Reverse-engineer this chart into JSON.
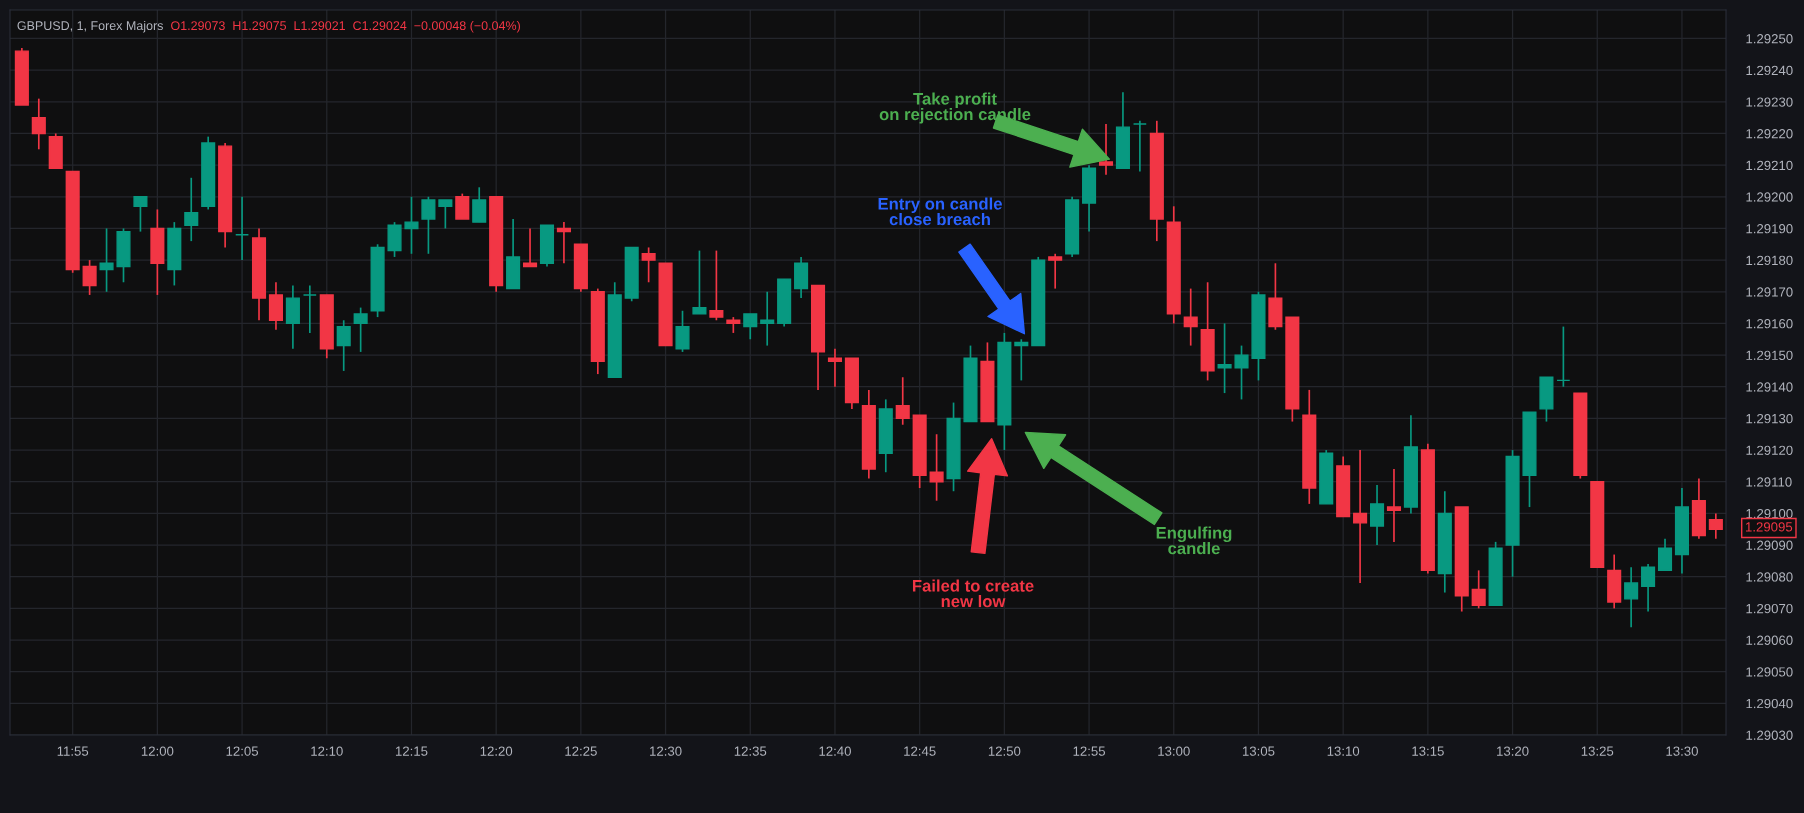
{
  "chart_data": {
    "type": "candlestick",
    "title": "GBPUSD, 1, Forex Majors",
    "subtitle": "O1.29073  H1.29075  L1.29021  C1.29024  −0.00048 (−0.04%)",
    "categories": [
      null,
      null,
      null,
      "11:55",
      null,
      null,
      null,
      null,
      "12:00",
      null,
      null,
      null,
      null,
      "12:05",
      null,
      null,
      null,
      null,
      "12:10",
      null,
      null,
      null,
      null,
      "12:15",
      null,
      null,
      null,
      null,
      "12:20",
      null,
      null,
      null,
      null,
      "12:25",
      null,
      null,
      null,
      null,
      "12:30",
      null,
      null,
      null,
      null,
      "12:35",
      null,
      null,
      null,
      null,
      "12:40",
      null,
      null,
      null,
      null,
      "12:45",
      null,
      null,
      null,
      null,
      "12:50",
      null,
      null,
      null,
      null,
      "12:55",
      null,
      null,
      null,
      null,
      "13:00",
      null,
      null,
      null,
      null,
      "13:05",
      null,
      null,
      null,
      null,
      "13:10",
      null,
      null,
      null,
      null,
      "13:15",
      null,
      null,
      null,
      null,
      "13:20",
      null,
      null,
      null,
      null,
      "13:25",
      null,
      null,
      null,
      null,
      "13:30",
      null,
      null
    ],
    "ohlc": [
      [
        1.29246,
        1.29247,
        1.29229,
        1.29229
      ],
      [
        1.29225,
        1.29231,
        1.29215,
        1.2922
      ],
      [
        1.29219,
        1.2922,
        1.29209,
        1.29209
      ],
      [
        1.29208,
        1.29208,
        1.29176,
        1.29177
      ],
      [
        1.29178,
        1.2918,
        1.29169,
        1.29172
      ],
      [
        1.29177,
        1.2919,
        1.2917,
        1.29179
      ],
      [
        1.29178,
        1.2919,
        1.29173,
        1.29189
      ],
      [
        1.29197,
        1.292,
        1.29189,
        1.292
      ],
      [
        1.2919,
        1.29196,
        1.29169,
        1.29179
      ],
      [
        1.29177,
        1.29192,
        1.29172,
        1.2919
      ],
      [
        1.29191,
        1.29206,
        1.29186,
        1.29195
      ],
      [
        1.29197,
        1.29219,
        1.29196,
        1.29217
      ],
      [
        1.29216,
        1.29217,
        1.29184,
        1.29189
      ],
      [
        1.29188,
        1.292,
        1.2918,
        1.29188
      ],
      [
        1.29187,
        1.2919,
        1.29161,
        1.29168
      ],
      [
        1.29169,
        1.29173,
        1.29158,
        1.29161
      ],
      [
        1.2916,
        1.29172,
        1.29152,
        1.29168
      ],
      [
        1.29169,
        1.29172,
        1.29157,
        1.29169
      ],
      [
        1.29169,
        1.29169,
        1.29149,
        1.29152
      ],
      [
        1.29153,
        1.29161,
        1.29145,
        1.29159
      ],
      [
        1.2916,
        1.29165,
        1.29151,
        1.29163
      ],
      [
        1.29164,
        1.29185,
        1.29162,
        1.29184
      ],
      [
        1.29183,
        1.29192,
        1.29181,
        1.29191
      ],
      [
        1.2919,
        1.292,
        1.29182,
        1.29192
      ],
      [
        1.29193,
        1.292,
        1.29182,
        1.29199
      ],
      [
        1.29197,
        1.29199,
        1.2919,
        1.29199
      ],
      [
        1.292,
        1.29201,
        1.29193,
        1.29193
      ],
      [
        1.29192,
        1.29203,
        1.29192,
        1.29199
      ],
      [
        1.292,
        1.292,
        1.2917,
        1.29172
      ],
      [
        1.29171,
        1.29193,
        1.29171,
        1.29181
      ],
      [
        1.29179,
        1.2919,
        1.29178,
        1.29178
      ],
      [
        1.29179,
        1.29191,
        1.29178,
        1.29191
      ],
      [
        1.2919,
        1.29192,
        1.29179,
        1.29189
      ],
      [
        1.29185,
        1.29185,
        1.2917,
        1.29171
      ],
      [
        1.2917,
        1.29171,
        1.29144,
        1.29148
      ],
      [
        1.29143,
        1.29173,
        1.29143,
        1.29169
      ],
      [
        1.29168,
        1.29184,
        1.29167,
        1.29184
      ],
      [
        1.29182,
        1.29184,
        1.29173,
        1.2918
      ],
      [
        1.29179,
        1.29179,
        1.29153,
        1.29153
      ],
      [
        1.29152,
        1.29164,
        1.29151,
        1.29159
      ],
      [
        1.29163,
        1.29183,
        1.29163,
        1.29165
      ],
      [
        1.29164,
        1.29183,
        1.29161,
        1.29162
      ],
      [
        1.29161,
        1.29162,
        1.29157,
        1.2916
      ],
      [
        1.29159,
        1.29163,
        1.29155,
        1.29163
      ],
      [
        1.2916,
        1.2917,
        1.29153,
        1.29161
      ],
      [
        1.2916,
        1.29174,
        1.29159,
        1.29174
      ],
      [
        1.29171,
        1.29181,
        1.29168,
        1.29179
      ],
      [
        1.29172,
        1.29172,
        1.29139,
        1.29151
      ],
      [
        1.29149,
        1.29152,
        1.2914,
        1.29148
      ],
      [
        1.29149,
        1.29149,
        1.29133,
        1.29135
      ],
      [
        1.29134,
        1.29139,
        1.29111,
        1.29114
      ],
      [
        1.29119,
        1.29136,
        1.29113,
        1.29133
      ],
      [
        1.29134,
        1.29143,
        1.29128,
        1.2913
      ],
      [
        1.29131,
        1.29131,
        1.29108,
        1.29112
      ],
      [
        1.29113,
        1.29125,
        1.29104,
        1.2911
      ],
      [
        1.29111,
        1.29135,
        1.29107,
        1.2913
      ],
      [
        1.29129,
        1.29153,
        1.29129,
        1.29149
      ],
      [
        1.29148,
        1.29154,
        1.29129,
        1.29129
      ],
      [
        1.29128,
        1.29157,
        1.2912,
        1.29154
      ],
      [
        1.29153,
        1.29155,
        1.29142,
        1.29154
      ],
      [
        1.29153,
        1.29181,
        1.29153,
        1.2918
      ],
      [
        1.29181,
        1.29182,
        1.29171,
        1.2918
      ],
      [
        1.29182,
        1.292,
        1.29181,
        1.29199
      ],
      [
        1.29198,
        1.2921,
        1.29189,
        1.29209
      ],
      [
        1.29211,
        1.29223,
        1.29207,
        1.2921
      ],
      [
        1.29209,
        1.29233,
        1.29209,
        1.29222
      ],
      [
        1.29223,
        1.29224,
        1.29208,
        1.29223
      ],
      [
        1.2922,
        1.29224,
        1.29186,
        1.29193
      ],
      [
        1.29192,
        1.29197,
        1.2916,
        1.29163
      ],
      [
        1.29162,
        1.29171,
        1.29153,
        1.29159
      ],
      [
        1.29158,
        1.29173,
        1.29142,
        1.29145
      ],
      [
        1.29146,
        1.2916,
        1.29138,
        1.29147
      ],
      [
        1.29146,
        1.29153,
        1.29136,
        1.2915
      ],
      [
        1.29149,
        1.2917,
        1.29142,
        1.29169
      ],
      [
        1.29168,
        1.29179,
        1.29158,
        1.29159
      ],
      [
        1.29162,
        1.29162,
        1.29129,
        1.29133
      ],
      [
        1.29131,
        1.29139,
        1.29103,
        1.29108
      ],
      [
        1.29103,
        1.2912,
        1.29103,
        1.29119
      ],
      [
        1.29115,
        1.29118,
        1.29099,
        1.29099
      ],
      [
        1.291,
        1.2912,
        1.29078,
        1.29097
      ],
      [
        1.29096,
        1.29109,
        1.2909,
        1.29103
      ],
      [
        1.29102,
        1.29114,
        1.29091,
        1.29101
      ],
      [
        1.29102,
        1.29131,
        1.291,
        1.29121
      ],
      [
        1.2912,
        1.29122,
        1.29081,
        1.29082
      ],
      [
        1.29081,
        1.29107,
        1.29075,
        1.291
      ],
      [
        1.29102,
        1.29102,
        1.29069,
        1.29074
      ],
      [
        1.29076,
        1.29082,
        1.2907,
        1.29071
      ],
      [
        1.29071,
        1.29091,
        1.29071,
        1.29089
      ],
      [
        1.2909,
        1.2912,
        1.2908,
        1.29118
      ],
      [
        1.29112,
        1.29132,
        1.29102,
        1.29132
      ],
      [
        1.29133,
        1.29143,
        1.29129,
        1.29143
      ],
      [
        1.29142,
        1.29159,
        1.2914,
        1.29142
      ],
      [
        1.29138,
        1.29138,
        1.29111,
        1.29112
      ],
      [
        1.2911,
        1.2911,
        1.29083,
        1.29083
      ],
      [
        1.29082,
        1.29087,
        1.2907,
        1.29072
      ],
      [
        1.29073,
        1.29083,
        1.29064,
        1.29078
      ],
      [
        1.29077,
        1.29084,
        1.29069,
        1.29083
      ],
      [
        1.29082,
        1.29092,
        1.29082,
        1.29089
      ],
      [
        1.29087,
        1.29108,
        1.29081,
        1.29102
      ],
      [
        1.29104,
        1.29111,
        1.29092,
        1.29093
      ],
      [
        1.29098,
        1.291,
        1.29092,
        1.29095
      ]
    ],
    "colors": [
      "#f23645",
      "#f23645",
      "#f23645",
      "#f23645",
      "#f23645",
      "#089981",
      "#089981",
      "#089981",
      "#f23645",
      "#089981",
      "#089981",
      "#089981",
      "#f23645",
      "#089981",
      "#f23645",
      "#f23645",
      "#089981",
      "#089981",
      "#f23645",
      "#089981",
      "#089981",
      "#089981",
      "#089981",
      "#089981",
      "#089981",
      "#089981",
      "#f23645",
      "#089981",
      "#f23645",
      "#089981",
      "#f23645",
      "#089981",
      "#f23645",
      "#f23645",
      "#f23645",
      "#089981",
      "#089981",
      "#f23645",
      "#f23645",
      "#089981",
      "#089981",
      "#f23645",
      "#f23645",
      "#089981",
      "#089981",
      "#089981",
      "#089981",
      "#f23645",
      "#f23645",
      "#f23645",
      "#f23645",
      "#089981",
      "#f23645",
      "#f23645",
      "#f23645",
      "#089981",
      "#089981",
      "#f23645",
      "#089981",
      "#089981",
      "#089981",
      "#f23645",
      "#089981",
      "#089981",
      "#f23645",
      "#089981",
      "#089981",
      "#f23645",
      "#f23645",
      "#f23645",
      "#f23645",
      "#089981",
      "#089981",
      "#089981",
      "#f23645",
      "#f23645",
      "#f23645",
      "#089981",
      "#f23645",
      "#f23645",
      "#089981",
      "#f23645",
      "#089981",
      "#f23645",
      "#089981",
      "#f23645",
      "#f23645",
      "#089981",
      "#089981",
      "#089981",
      "#089981",
      "#089981",
      "#f23645",
      "#f23645",
      "#f23645",
      "#089981",
      "#089981",
      "#089981",
      "#089981",
      "#f23645",
      "#f23645"
    ],
    "ylim": [
      1.2903,
      1.29259
    ],
    "yticks": [
      {
        "value": 1.2903,
        "label": "1.29030"
      },
      {
        "value": 1.2904,
        "label": "1.29040"
      },
      {
        "value": 1.2905,
        "label": "1.29050"
      },
      {
        "value": 1.2906,
        "label": "1.29060"
      },
      {
        "value": 1.2907,
        "label": "1.29070"
      },
      {
        "value": 1.2908,
        "label": "1.29080"
      },
      {
        "value": 1.2909,
        "label": "1.29090"
      },
      {
        "value": 1.291,
        "label": "1.29100"
      },
      {
        "value": 1.2911,
        "label": "1.29110"
      },
      {
        "value": 1.2912,
        "label": "1.29120"
      },
      {
        "value": 1.2913,
        "label": "1.29130"
      },
      {
        "value": 1.2914,
        "label": "1.29140"
      },
      {
        "value": 1.2915,
        "label": "1.29150"
      },
      {
        "value": 1.2916,
        "label": "1.29160"
      },
      {
        "value": 1.2917,
        "label": "1.29170"
      },
      {
        "value": 1.2918,
        "label": "1.29180"
      },
      {
        "value": 1.2919,
        "label": "1.29190"
      },
      {
        "value": 1.292,
        "label": "1.29200"
      },
      {
        "value": 1.2921,
        "label": "1.29210"
      },
      {
        "value": 1.2922,
        "label": "1.29220"
      },
      {
        "value": 1.2923,
        "label": "1.29230"
      },
      {
        "value": 1.2924,
        "label": "1.29240"
      },
      {
        "value": 1.2925,
        "label": "1.29250"
      }
    ],
    "annotations": [
      "Take profit\non rejection candle",
      "Entry on candle\nclose breach",
      "Failed to create\nnew low",
      "Engulfing\ncandle",
      "1.29095"
    ],
    "grid": true,
    "legend": false
  }
}
